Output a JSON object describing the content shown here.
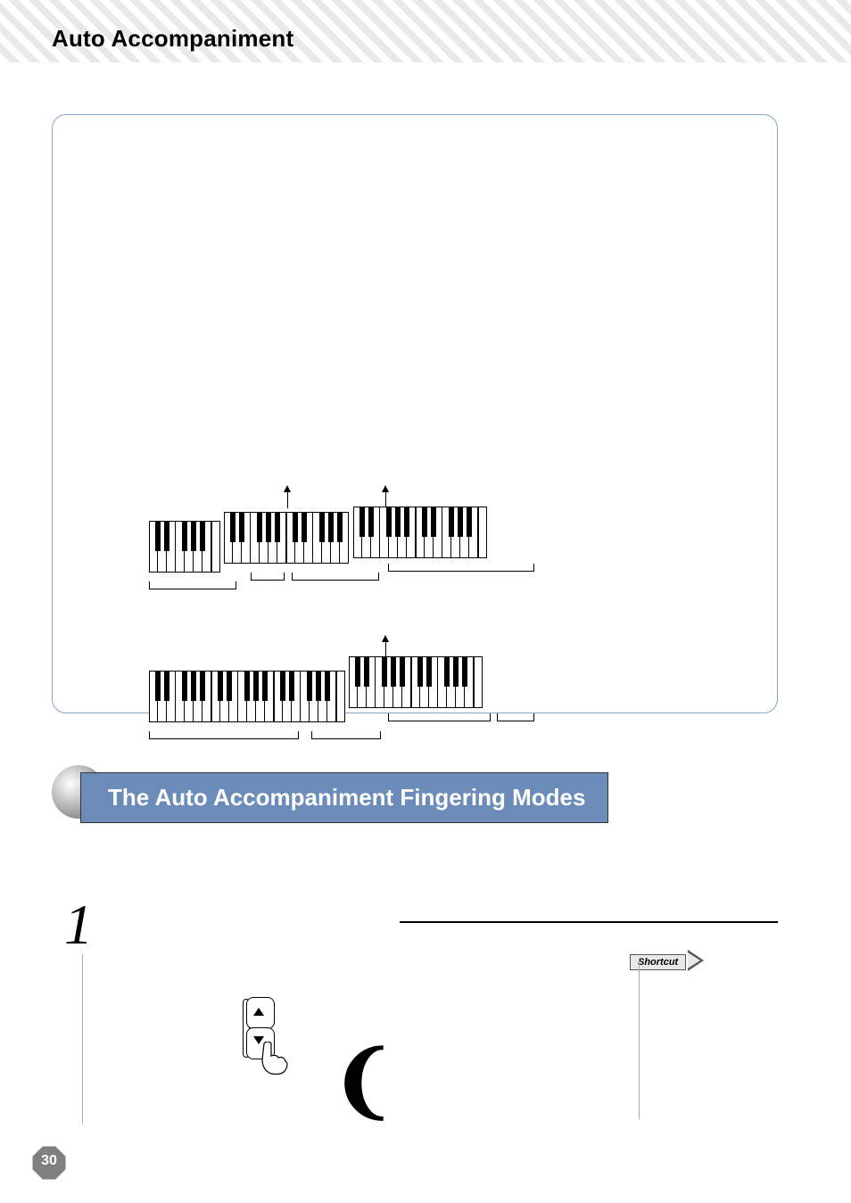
{
  "header": {
    "title": "Auto Accompaniment"
  },
  "section": {
    "heading": "The Auto Accompaniment Fingering Modes"
  },
  "step": {
    "number": "1"
  },
  "shortcut": {
    "label": "Shortcut"
  },
  "page_number": "30",
  "keyboards": {
    "kb1": {
      "octaves": 5
    },
    "kb2": {
      "octaves": 5
    }
  },
  "colors": {
    "header_band_light": "#f5f5f5",
    "header_band_dark": "#dcdcdc",
    "panel_border": "#8aa4c8",
    "section_bg": "#6b8bb8",
    "section_text": "#ffffff",
    "page_oct_fill": "#808080",
    "text": "#000000"
  }
}
